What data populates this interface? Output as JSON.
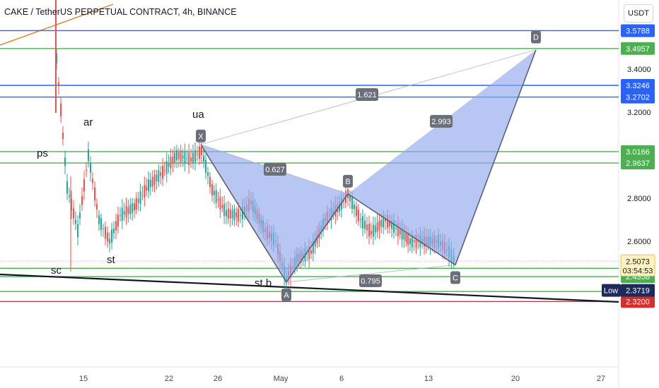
{
  "header": {
    "title": "CAKE / TetherUS PERPETUAL CONTRACT, 4h, BINANCE",
    "currency_button": "USDT"
  },
  "colors": {
    "blue_line": "#2962ff",
    "green_line": "#4caf50",
    "red_line": "#d32f2f",
    "pattern_fill": "#90a8ec",
    "pattern_stroke": "#555b6e",
    "bull_candle": "#26a69a",
    "bear_candle": "#ef5350",
    "label_bg": "#6b6f7a"
  },
  "chart_data": {
    "type": "candlestick",
    "symbol": "CAKE / TetherUS PERPETUAL CONTRACT",
    "timeframe": "4h",
    "exchange": "BINANCE",
    "price_ticks": [
      "3.4000",
      "3.2000",
      "2.8000",
      "2.6000"
    ],
    "time_ticks": [
      "15",
      "22",
      "26",
      "May",
      "6",
      "13",
      "20",
      "27"
    ],
    "horizontal_levels": [
      {
        "price": 3.5788,
        "color": "blue",
        "label": "3.5788"
      },
      {
        "price": 3.4957,
        "color": "green",
        "label": "3.4957"
      },
      {
        "price": 3.3246,
        "color": "blue",
        "label": "3.3246"
      },
      {
        "price": 3.2702,
        "color": "blue",
        "label": "3.2702"
      },
      {
        "price": 3.0166,
        "color": "green",
        "label": "3.0166"
      },
      {
        "price": 2.9637,
        "color": "green",
        "label": "2.9637"
      },
      {
        "price": 2.4743,
        "color": "green",
        "label": "2.4743"
      },
      {
        "price": 2.4358,
        "color": "green",
        "label": "2.4358"
      },
      {
        "price": 2.3667,
        "color": "green",
        "label": "2.3667"
      },
      {
        "price": 2.32,
        "color": "red",
        "label": "2.3200"
      }
    ],
    "current_price": {
      "price": 2.5073,
      "label": "2.5073",
      "countdown": "03:54:53"
    },
    "low_marker": {
      "label": "Low",
      "price": 2.3719,
      "value_label": "2.3719"
    },
    "harmonic_pattern": {
      "points": [
        {
          "label": "X",
          "price": 3.05
        },
        {
          "label": "A",
          "price": 2.41
        },
        {
          "label": "B",
          "price": 2.82
        },
        {
          "label": "C",
          "price": 2.49
        },
        {
          "label": "D",
          "price": 3.49
        }
      ],
      "ratios": [
        {
          "between": "XA-AB",
          "value": "0.627"
        },
        {
          "between": "AB-BC",
          "value": "0.795"
        },
        {
          "between": "BC-CD",
          "value": "2.993"
        },
        {
          "between": "XA-AD",
          "value": "1.621"
        }
      ]
    },
    "wyckoff_labels": [
      "ps",
      "ar",
      "sc",
      "st",
      "ua",
      "st.b"
    ],
    "candles": []
  }
}
